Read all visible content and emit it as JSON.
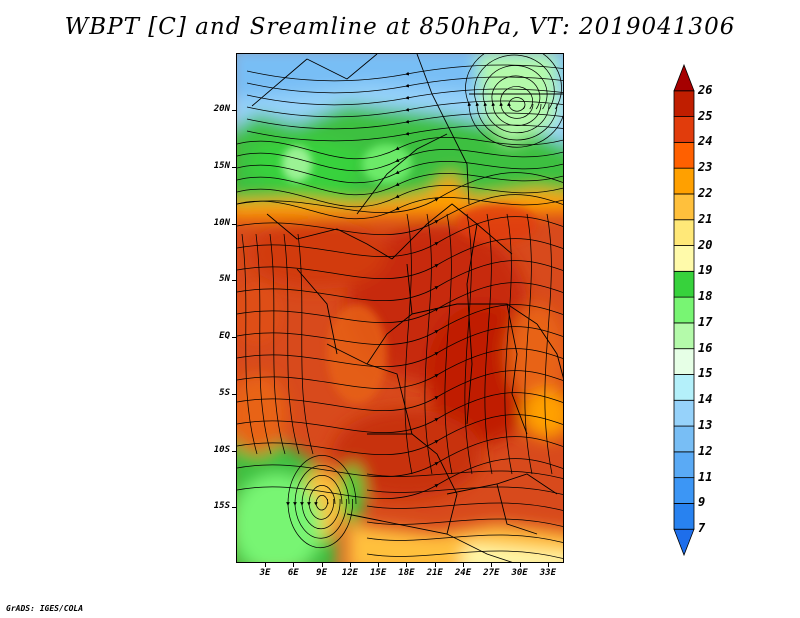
{
  "title": "WBPT [C] and Sreamline at 850hPa, VT: 2019041306",
  "credit": "GrADS: IGES/COLA",
  "map": {
    "latitude_labels": [
      {
        "text": "20N",
        "value": 20
      },
      {
        "text": "15N",
        "value": 15
      },
      {
        "text": "10N",
        "value": 10
      },
      {
        "text": "5N",
        "value": 5
      },
      {
        "text": "EQ",
        "value": 0
      },
      {
        "text": "5S",
        "value": -5
      },
      {
        "text": "10S",
        "value": -10
      },
      {
        "text": "15S",
        "value": -15
      }
    ],
    "longitude_labels": [
      {
        "text": "3E",
        "value": 3
      },
      {
        "text": "6E",
        "value": 6
      },
      {
        "text": "9E",
        "value": 9
      },
      {
        "text": "12E",
        "value": 12
      },
      {
        "text": "15E",
        "value": 15
      },
      {
        "text": "18E",
        "value": 18
      },
      {
        "text": "21E",
        "value": 21
      },
      {
        "text": "24E",
        "value": 24
      },
      {
        "text": "27E",
        "value": 27
      },
      {
        "text": "30E",
        "value": 30
      },
      {
        "text": "33E",
        "value": 33
      }
    ]
  },
  "colorbar": {
    "levels": [
      "7",
      "9",
      "11",
      "12",
      "13",
      "14",
      "15",
      "16",
      "17",
      "18",
      "19",
      "20",
      "21",
      "22",
      "23",
      "24",
      "25",
      "26"
    ],
    "colors": [
      "#1e6eeb",
      "#2882f0",
      "#3c96f5",
      "#5aaaf5",
      "#78bef5",
      "#96d2fa",
      "#b4f0fa",
      "#e6ffe6",
      "#b4faaa",
      "#78f573",
      "#37d23c",
      "#fffaaa",
      "#ffe878",
      "#ffc03c",
      "#ffa000",
      "#ff6000",
      "#e13c0c",
      "#c01e00",
      "#a50000"
    ]
  }
}
